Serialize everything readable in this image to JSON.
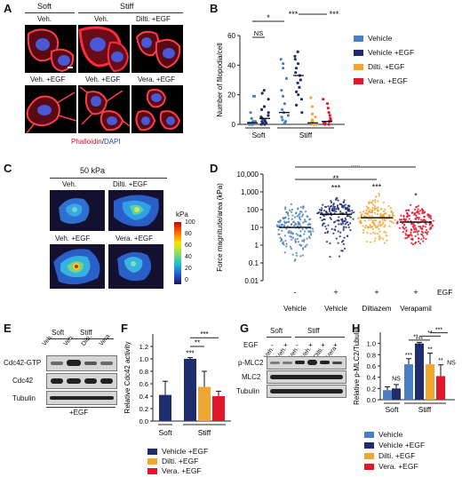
{
  "panels": {
    "A": {
      "label": "A",
      "col_groups": [
        "Soft",
        "Stiff"
      ],
      "top_labels": [
        "Veh.",
        "Veh.",
        "Dilti. +EGF"
      ],
      "bottom_labels": [
        "Veh. +EGF",
        "Veh. +EGF",
        "Vera. +EGF"
      ],
      "stain_phalloidin": "Phalloidin",
      "stain_sep": "/",
      "stain_dapi": "DAPI"
    },
    "B": {
      "label": "B",
      "legend": [
        "Vehicle",
        "Vehicle +EGF",
        "Dilti. +EGF",
        "Vera. +EGF"
      ],
      "sig": [
        "*",
        "NS",
        "***",
        "***"
      ]
    },
    "C": {
      "label": "C",
      "title": "50 kPa",
      "top_labels": [
        "Veh.",
        "Dilti. +EGF"
      ],
      "bottom_labels": [
        "Veh. +EGF",
        "Vera. +EGF"
      ],
      "scale_title": "kPa",
      "scale_ticks": [
        "100",
        "80",
        "60",
        "40",
        "20",
        "0"
      ]
    },
    "D": {
      "label": "D",
      "sig": [
        "***",
        "**",
        "***",
        "***",
        "*"
      ],
      "egf_row": [
        "-",
        "+",
        "+",
        "+"
      ],
      "egf_label": "EGF"
    },
    "E": {
      "label": "E",
      "groups": [
        "Soft",
        "Stiff"
      ],
      "lanes": [
        "Veh.",
        "Veh.",
        "Dilti.",
        "Vera"
      ],
      "rows": [
        "Cdc42-GTP",
        "Cdc42",
        "Tubulin"
      ],
      "treatment": "+EGF"
    },
    "F": {
      "label": "F",
      "legend": [
        "Vehicle +EGF",
        "Dilti. +EGF",
        "Vera. +EGF"
      ],
      "sig": [
        "***",
        "**",
        "***"
      ]
    },
    "G": {
      "label": "G",
      "groups": [
        "Soft",
        "Stiff"
      ],
      "egf_label": "EGF",
      "egf_row": [
        "-",
        "+",
        "-",
        "+",
        "+",
        "+"
      ],
      "lanes": [
        "Veh.",
        "Veh.",
        "Veh.",
        "Veh.",
        "Dilti.",
        "Vera"
      ],
      "rows": [
        "p-MLC2",
        "MLC2",
        "Tubulin"
      ]
    },
    "H": {
      "label": "H",
      "legend": [
        "Vehicle",
        "Vehicle +EGF",
        "Dilti. +EGF",
        "Vera. +EGF"
      ],
      "sig": [
        "NS",
        "***",
        "**",
        "***",
        "**",
        "**",
        "***",
        "**",
        "NS"
      ]
    }
  },
  "chart_data": [
    {
      "id": "B",
      "type": "scatter",
      "ylabel": "Number of filopodia/cell",
      "ylim": [
        0,
        60
      ],
      "yticks": [
        0,
        20,
        40,
        60
      ],
      "group_labels": [
        "Soft",
        "Stiff"
      ],
      "series": [
        {
          "name": "Vehicle",
          "color": "#4a7fc1",
          "group": "Soft",
          "median": 1,
          "points": [
            0,
            0,
            0,
            0,
            1,
            1,
            1,
            2,
            2,
            4,
            8,
            19,
            19
          ]
        },
        {
          "name": "Vehicle +EGF",
          "color": "#1f2d6e",
          "group": "Soft",
          "median": 4,
          "points": [
            0,
            0,
            1,
            1,
            2,
            2,
            3,
            4,
            5,
            6,
            8,
            10,
            12,
            17,
            21,
            23
          ]
        },
        {
          "name": "Vehicle",
          "color": "#4a7fc1",
          "group": "Stiff",
          "median": 8,
          "points": [
            1,
            2,
            3,
            5,
            6,
            8,
            10,
            14,
            19,
            23,
            31,
            38,
            41,
            44
          ]
        },
        {
          "name": "Vehicle +EGF",
          "color": "#1f2d6e",
          "group": "Stiff",
          "median": 33,
          "points": [
            8,
            13,
            17,
            20,
            22,
            25,
            28,
            30,
            33,
            35,
            38,
            41,
            44,
            46,
            49
          ]
        },
        {
          "name": "Dilti. +EGF",
          "color": "#f0a732",
          "group": "Stiff",
          "median": 1,
          "points": [
            0,
            0,
            0,
            1,
            1,
            2,
            3,
            5,
            7,
            12,
            18
          ]
        },
        {
          "name": "Vera. +EGF",
          "color": "#e0162b",
          "group": "Stiff",
          "median": 2,
          "points": [
            0,
            0,
            1,
            1,
            2,
            2,
            3,
            4,
            6,
            8,
            11,
            14,
            17
          ]
        }
      ]
    },
    {
      "id": "D",
      "type": "scatter",
      "ylabel": "Force magnitude/area (kPa)",
      "yscale": "log",
      "ylim": [
        0.01,
        10000
      ],
      "yticks": [
        "0.01",
        "0.1",
        "1",
        "10",
        "100",
        "1,000",
        "10,000"
      ],
      "categories": [
        "Vehicle",
        "Vehicle",
        "Diltiazem",
        "Verapamil"
      ],
      "series": [
        {
          "name": "Vehicle",
          "color": "#4a7fc1",
          "median": 10,
          "min": 0.04,
          "max": 500
        },
        {
          "name": "Vehicle +EGF",
          "color": "#1f2d6e",
          "median": 55,
          "min": 0.1,
          "max": 900
        },
        {
          "name": "Diltiazem +EGF",
          "color": "#f0a732",
          "median": 35,
          "min": 0.3,
          "max": 1000
        },
        {
          "name": "Verapamil +EGF",
          "color": "#e0162b",
          "median": 20,
          "min": 0.3,
          "max": 300
        }
      ]
    },
    {
      "id": "F",
      "type": "bar",
      "ylabel": "Relative Cdc42 activity",
      "ylim": [
        0,
        1.4
      ],
      "yticks": [
        "0.0",
        "0.2",
        "0.4",
        "0.6",
        "0.8",
        "1.0",
        "1.2"
      ],
      "group_labels": [
        "Soft",
        "Stiff"
      ],
      "series": [
        {
          "name": "Vehicle +EGF",
          "color": "#1f2d6e",
          "group": "Soft",
          "value": 0.42,
          "error": 0.22
        },
        {
          "name": "Vehicle +EGF",
          "color": "#1f2d6e",
          "group": "Stiff",
          "value": 1.0,
          "error": 0.02
        },
        {
          "name": "Dilti. +EGF",
          "color": "#f0a732",
          "group": "Stiff",
          "value": 0.55,
          "error": 0.25
        },
        {
          "name": "Vera. +EGF",
          "color": "#e0162b",
          "group": "Stiff",
          "value": 0.4,
          "error": 0.08
        }
      ]
    },
    {
      "id": "H",
      "type": "bar",
      "ylabel": "Relative p-MLC2/Tubulin",
      "ylim": [
        0,
        1.2
      ],
      "yticks": [
        "0.0",
        "0.2",
        "0.4",
        "0.6",
        "0.8",
        "1.0"
      ],
      "group_labels": [
        "Soft",
        "Stiff"
      ],
      "series": [
        {
          "name": "Vehicle",
          "color": "#4a7fc1",
          "group": "Soft",
          "value": 0.17,
          "error": 0.06
        },
        {
          "name": "Vehicle +EGF",
          "color": "#1f2d6e",
          "group": "Soft",
          "value": 0.2,
          "error": 0.07
        },
        {
          "name": "Vehicle",
          "color": "#4a7fc1",
          "group": "Stiff",
          "value": 0.63,
          "error": 0.1
        },
        {
          "name": "Vehicle +EGF",
          "color": "#1f2d6e",
          "group": "Stiff",
          "value": 1.0,
          "error": 0.02
        },
        {
          "name": "Dilti. +EGF",
          "color": "#f0a732",
          "group": "Stiff",
          "value": 0.63,
          "error": 0.2
        },
        {
          "name": "Vera. +EGF",
          "color": "#e0162b",
          "group": "Stiff",
          "value": 0.42,
          "error": 0.2
        }
      ]
    }
  ]
}
